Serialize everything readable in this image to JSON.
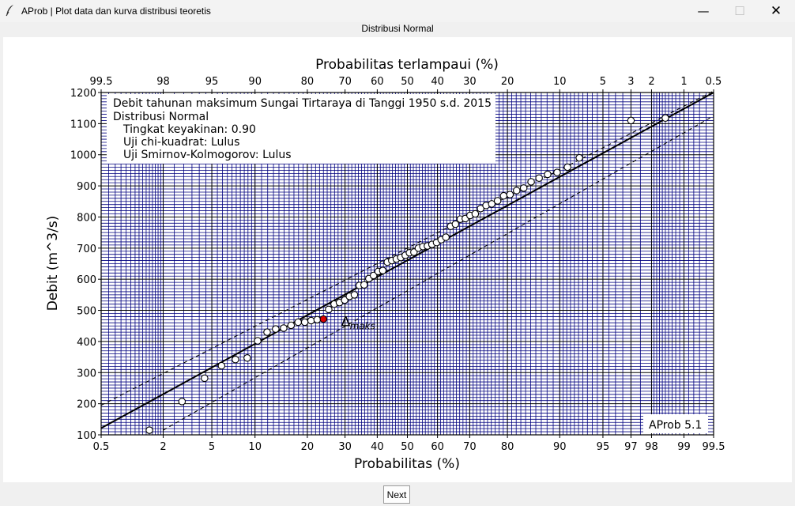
{
  "window": {
    "title": "AProb | Plot data dan kurva distribusi teoretis",
    "minimize_icon": "minimize-icon",
    "maximize_icon": "maximize-icon",
    "close_icon": "close-icon"
  },
  "header": {
    "subtitle": "Distribusi Normal"
  },
  "footer": {
    "next_label": "Next"
  },
  "chart_data": {
    "type": "scatter",
    "info_box": {
      "title": "Debit tahunan maksimum Sungai Tirtaraya di Tanggi 1950 s.d. 2015",
      "distribution": "Distribusi Normal",
      "confidence": "Tingkat keyakinan: 0.90",
      "chi_square": "Uji chi-kuadrat: Lulus",
      "smirnov": "Uji Smirnov-Kolmogorov: Lulus"
    },
    "watermark": "AProb 5.1",
    "xlabel_bottom": "Probabilitas (%)",
    "xlabel_top": "Probabilitas terlampaui (%)",
    "ylabel": "Debit (m^3/s)",
    "x_scale": "normal-probability",
    "xlim": [
      0.5,
      99.5
    ],
    "ylim": [
      100,
      1200
    ],
    "bottom_ticks": [
      "0.5",
      "2",
      "5",
      "10",
      "20",
      "30",
      "40",
      "50",
      "60",
      "70",
      "80",
      "90",
      "95",
      "97",
      "98",
      "99",
      "99.5"
    ],
    "bottom_tick_values": [
      0.5,
      2,
      5,
      10,
      20,
      30,
      40,
      50,
      60,
      70,
      80,
      90,
      95,
      97,
      98,
      99,
      99.5
    ],
    "top_ticks": [
      "99.5",
      "98",
      "95",
      "90",
      "80",
      "70",
      "60",
      "50",
      "40",
      "30",
      "20",
      "10",
      "5",
      "3",
      "2",
      "1",
      "0.5"
    ],
    "y_ticks": [
      "100",
      "200",
      "300",
      "400",
      "500",
      "600",
      "700",
      "800",
      "900",
      "1000",
      "1100",
      "1200"
    ],
    "y_tick_values": [
      100,
      200,
      300,
      400,
      500,
      600,
      700,
      800,
      900,
      1000,
      1100,
      1200
    ],
    "fit_line": {
      "mean": 665,
      "sd": 211
    },
    "confidence_band": {
      "upper_x": [
        0.5,
        99.5
      ],
      "upper_y": [
        195,
        1205
      ],
      "lower_x": [
        2,
        99.5
      ],
      "lower_y": [
        115,
        1125
      ]
    },
    "max_marker": {
      "label": "Δ",
      "subscript": "maks",
      "x": 30,
      "y": 475
    },
    "highlight_point": {
      "x": 24,
      "y": 472,
      "color": "#dd0000"
    },
    "grid_colors": {
      "major": "#000000",
      "minor": "#00007f"
    },
    "points": [
      [
        1.5,
        115
      ],
      [
        2.9,
        207
      ],
      [
        4.4,
        282
      ],
      [
        5.9,
        322
      ],
      [
        7.4,
        342
      ],
      [
        8.9,
        347
      ],
      [
        10.4,
        402
      ],
      [
        11.9,
        430
      ],
      [
        13.4,
        440
      ],
      [
        14.9,
        443
      ],
      [
        16.4,
        452
      ],
      [
        17.9,
        462
      ],
      [
        19.4,
        462
      ],
      [
        20.9,
        467
      ],
      [
        22.4,
        470
      ],
      [
        25.4,
        503
      ],
      [
        26.9,
        520
      ],
      [
        28.4,
        525
      ],
      [
        29.9,
        533
      ],
      [
        31.3,
        545
      ],
      [
        32.8,
        550
      ],
      [
        34.3,
        580
      ],
      [
        35.8,
        582
      ],
      [
        37.3,
        602
      ],
      [
        38.8,
        612
      ],
      [
        40.3,
        625
      ],
      [
        41.8,
        628
      ],
      [
        43.3,
        655
      ],
      [
        44.8,
        660
      ],
      [
        46.3,
        665
      ],
      [
        47.8,
        670
      ],
      [
        49.3,
        677
      ],
      [
        50.7,
        685
      ],
      [
        52.2,
        687
      ],
      [
        53.7,
        700
      ],
      [
        55.2,
        705
      ],
      [
        56.7,
        707
      ],
      [
        58.2,
        712
      ],
      [
        59.7,
        718
      ],
      [
        61.2,
        727
      ],
      [
        62.7,
        735
      ],
      [
        64.2,
        770
      ],
      [
        65.7,
        777
      ],
      [
        67.2,
        793
      ],
      [
        68.7,
        795
      ],
      [
        70.1,
        805
      ],
      [
        71.6,
        810
      ],
      [
        73.1,
        827
      ],
      [
        74.6,
        837
      ],
      [
        76.1,
        842
      ],
      [
        77.6,
        852
      ],
      [
        79.1,
        868
      ],
      [
        80.6,
        872
      ],
      [
        82.1,
        885
      ],
      [
        83.6,
        893
      ],
      [
        85.1,
        913
      ],
      [
        86.6,
        925
      ],
      [
        88.1,
        937
      ],
      [
        89.6,
        943
      ],
      [
        91.1,
        960
      ],
      [
        92.6,
        990
      ],
      [
        97.0,
        1110
      ],
      [
        98.5,
        1118
      ]
    ]
  }
}
